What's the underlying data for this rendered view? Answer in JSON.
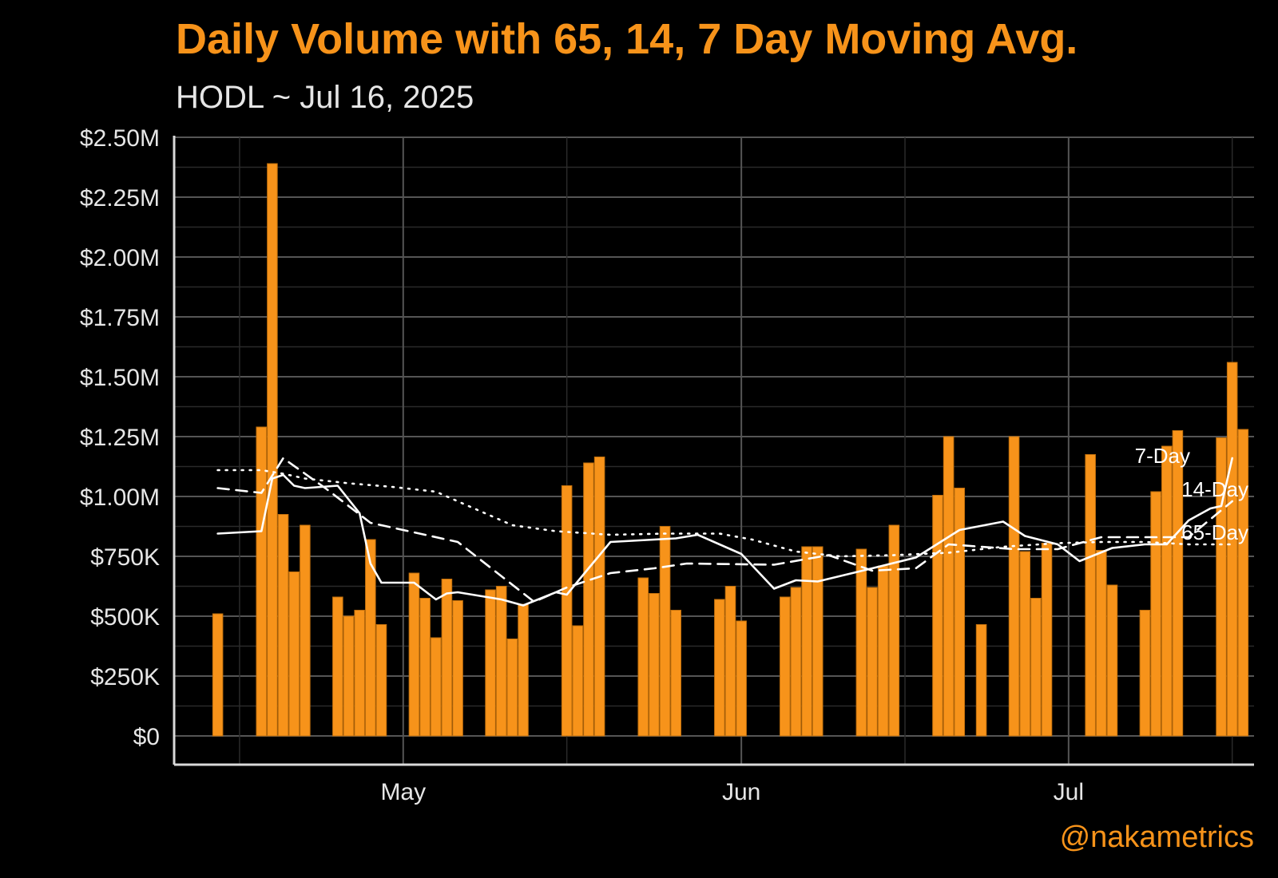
{
  "header": {
    "title": "Daily Volume with 65, 14, 7 Day Moving Avg.",
    "subtitle": "HODL ~ Jul 16, 2025",
    "credit": "@nakametrics"
  },
  "chart_data": {
    "type": "bar",
    "title": "Daily Volume with 65, 14, 7 Day Moving Avg.",
    "subtitle": "HODL ~ Jul 16, 2025",
    "xlabel": "",
    "ylabel": "",
    "ylim": [
      0,
      2500000
    ],
    "xlim": [
      "2025-04-10",
      "2025-07-18"
    ],
    "x_tick_labels": [
      {
        "date": "2025-05-01",
        "label": "May"
      },
      {
        "date": "2025-06-01",
        "label": "Jun"
      },
      {
        "date": "2025-07-01",
        "label": "Jul"
      }
    ],
    "y_ticks": [
      {
        "value": 0,
        "label": "$0"
      },
      {
        "value": 250000,
        "label": "$250K"
      },
      {
        "value": 500000,
        "label": "$500K"
      },
      {
        "value": 750000,
        "label": "$750K"
      },
      {
        "value": 1000000,
        "label": "$1.00M"
      },
      {
        "value": 1250000,
        "label": "$1.25M"
      },
      {
        "value": 1500000,
        "label": "$1.50M"
      },
      {
        "value": 1750000,
        "label": "$1.75M"
      },
      {
        "value": 2000000,
        "label": "$2.00M"
      },
      {
        "value": 2250000,
        "label": "$2.25M"
      },
      {
        "value": 2500000,
        "label": "$2.50M"
      }
    ],
    "grid": true,
    "colors": {
      "bar": "#f7931a",
      "lines": "#ffffff",
      "grid": "#555555",
      "background": "#000000"
    },
    "bars": {
      "name": "Daily Volume",
      "x": [
        "2025-04-14",
        "2025-04-18",
        "2025-04-19",
        "2025-04-20",
        "2025-04-21",
        "2025-04-22",
        "2025-04-25",
        "2025-04-26",
        "2025-04-27",
        "2025-04-28",
        "2025-04-29",
        "2025-05-02",
        "2025-05-03",
        "2025-05-04",
        "2025-05-05",
        "2025-05-06",
        "2025-05-09",
        "2025-05-10",
        "2025-05-11",
        "2025-05-12",
        "2025-05-16",
        "2025-05-17",
        "2025-05-18",
        "2025-05-19",
        "2025-05-23",
        "2025-05-24",
        "2025-05-25",
        "2025-05-26",
        "2025-05-30",
        "2025-05-31",
        "2025-06-01",
        "2025-06-05",
        "2025-06-06",
        "2025-06-07",
        "2025-06-08",
        "2025-06-12",
        "2025-06-13",
        "2025-06-14",
        "2025-06-15",
        "2025-06-19",
        "2025-06-20",
        "2025-06-21",
        "2025-06-23",
        "2025-06-26",
        "2025-06-27",
        "2025-06-28",
        "2025-06-29",
        "2025-07-03",
        "2025-07-04",
        "2025-07-05",
        "2025-07-08",
        "2025-07-09",
        "2025-07-10",
        "2025-07-11",
        "2025-07-15",
        "2025-07-16",
        "2025-07-17"
      ],
      "values": [
        510000,
        1290000,
        2390000,
        925000,
        685000,
        880000,
        580000,
        500000,
        525000,
        820000,
        465000,
        680000,
        575000,
        410000,
        655000,
        565000,
        610000,
        625000,
        405000,
        550000,
        1045000,
        460000,
        1140000,
        1165000,
        660000,
        595000,
        875000,
        525000,
        570000,
        625000,
        480000,
        580000,
        620000,
        790000,
        790000,
        780000,
        620000,
        710000,
        880000,
        1005000,
        1250000,
        1035000,
        465000,
        1250000,
        770000,
        575000,
        805000,
        1175000,
        775000,
        630000,
        525000,
        1020000,
        1210000,
        1275000,
        1245000,
        1560000,
        1280000
      ]
    },
    "series": [
      {
        "name": "7-Day",
        "style": "solid",
        "x": [
          "2025-04-14",
          "2025-04-18",
          "2025-04-19",
          "2025-04-20",
          "2025-04-21",
          "2025-04-22",
          "2025-04-25",
          "2025-04-27",
          "2025-04-28",
          "2025-04-29",
          "2025-05-02",
          "2025-05-04",
          "2025-05-05",
          "2025-05-06",
          "2025-05-10",
          "2025-05-12",
          "2025-05-15",
          "2025-05-16",
          "2025-05-18",
          "2025-05-20",
          "2025-05-26",
          "2025-05-28",
          "2025-06-01",
          "2025-06-04",
          "2025-06-06",
          "2025-06-08",
          "2025-06-13",
          "2025-06-17",
          "2025-06-21",
          "2025-06-25",
          "2025-06-27",
          "2025-06-30",
          "2025-07-02",
          "2025-07-05",
          "2025-07-08",
          "2025-07-10",
          "2025-07-12",
          "2025-07-14",
          "2025-07-15",
          "2025-07-16"
        ],
        "y": [
          845000,
          855000,
          1075000,
          1090000,
          1045000,
          1035000,
          1045000,
          930000,
          720000,
          640000,
          640000,
          570000,
          595000,
          600000,
          570000,
          545000,
          600000,
          590000,
          700000,
          810000,
          825000,
          840000,
          760000,
          615000,
          650000,
          645000,
          700000,
          745000,
          860000,
          895000,
          835000,
          800000,
          730000,
          785000,
          800000,
          800000,
          900000,
          950000,
          960000,
          1160000
        ]
      },
      {
        "name": "14-Day",
        "style": "dashed",
        "x": [
          "2025-04-14",
          "2025-04-18",
          "2025-04-20",
          "2025-04-24",
          "2025-04-28",
          "2025-05-03",
          "2025-05-06",
          "2025-05-13",
          "2025-05-16",
          "2025-05-20",
          "2025-05-24",
          "2025-05-27",
          "2025-06-04",
          "2025-06-09",
          "2025-06-13",
          "2025-06-17",
          "2025-06-20",
          "2025-06-26",
          "2025-06-30",
          "2025-07-04",
          "2025-07-08",
          "2025-07-12",
          "2025-07-16"
        ],
        "y": [
          1035000,
          1015000,
          1160000,
          1030000,
          890000,
          840000,
          810000,
          560000,
          620000,
          680000,
          700000,
          720000,
          715000,
          755000,
          690000,
          700000,
          800000,
          780000,
          780000,
          830000,
          830000,
          830000,
          980000
        ]
      },
      {
        "name": "65-Day",
        "style": "dotted",
        "x": [
          "2025-04-14",
          "2025-04-18",
          "2025-04-20",
          "2025-04-22",
          "2025-04-26",
          "2025-04-30",
          "2025-05-04",
          "2025-05-07",
          "2025-05-11",
          "2025-05-15",
          "2025-05-20",
          "2025-05-25",
          "2025-05-30",
          "2025-06-02",
          "2025-06-06",
          "2025-06-10",
          "2025-06-15",
          "2025-06-20",
          "2025-06-25",
          "2025-06-30",
          "2025-07-04",
          "2025-07-08",
          "2025-07-12",
          "2025-07-16"
        ],
        "y": [
          1110000,
          1110000,
          1095000,
          1075000,
          1055000,
          1040000,
          1020000,
          960000,
          880000,
          855000,
          840000,
          845000,
          845000,
          820000,
          770000,
          750000,
          755000,
          765000,
          790000,
          805000,
          810000,
          810000,
          800000,
          800000
        ]
      }
    ]
  }
}
